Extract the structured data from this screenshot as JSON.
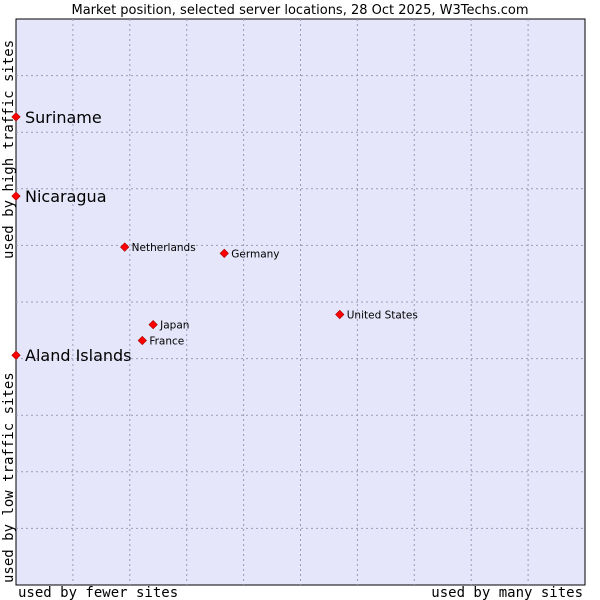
{
  "chart_data": {
    "type": "scatter",
    "title": "Market position, selected server locations, 28 Oct 2025, W3Techs.com",
    "xlabel_left": "used by fewer sites",
    "xlabel_right": "used by many sites",
    "ylabel_bottom": "used by low traffic sites",
    "ylabel_top": "used by high traffic sites",
    "xlim": [
      0,
      100
    ],
    "ylim": [
      0,
      100
    ],
    "grid": true,
    "colors": {
      "plot_bg": "#e6e6fa",
      "grid": "#9a9ab8",
      "point": "#ff0000",
      "point_edge": "#a00000"
    },
    "points": [
      {
        "label": "Suriname",
        "x": 0,
        "y": 82.7,
        "emphasis": true
      },
      {
        "label": "Nicaragua",
        "x": 0,
        "y": 68.7,
        "emphasis": true
      },
      {
        "label": "Netherlands",
        "x": 19.1,
        "y": 59.7,
        "emphasis": false
      },
      {
        "label": "Germany",
        "x": 36.6,
        "y": 58.6,
        "emphasis": false
      },
      {
        "label": "United States",
        "x": 56.9,
        "y": 47.8,
        "emphasis": false
      },
      {
        "label": "Japan",
        "x": 24.1,
        "y": 46.0,
        "emphasis": false
      },
      {
        "label": "France",
        "x": 22.2,
        "y": 43.2,
        "emphasis": false
      },
      {
        "label": "Aland Islands",
        "x": 0,
        "y": 40.6,
        "emphasis": true
      }
    ]
  }
}
